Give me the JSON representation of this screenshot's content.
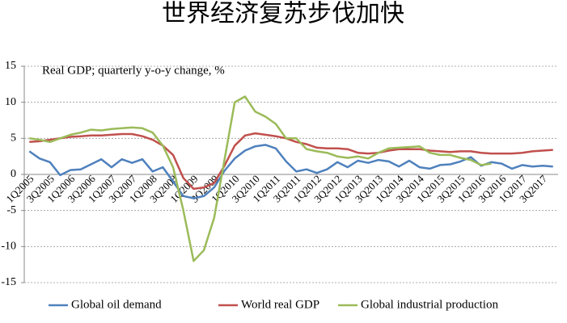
{
  "chart_data": {
    "type": "line",
    "title": "世界经济复苏步伐加快",
    "annotation": "Real GDP; quarterly y-o-y change, %",
    "categories": [
      "1Q2005",
      null,
      "3Q2005",
      null,
      "1Q2006",
      null,
      "3Q2006",
      null,
      "1Q2007",
      null,
      "3Q2007",
      null,
      "1Q2008",
      null,
      "3Q2008",
      null,
      "1Q2009",
      null,
      "3Q2009",
      null,
      "1Q2010",
      null,
      "3Q2010",
      null,
      "1Q2011",
      null,
      "3Q2011",
      null,
      "1Q2012",
      null,
      "3Q2012",
      null,
      "1Q2013",
      null,
      "3Q2013",
      null,
      "1Q2014",
      null,
      "3Q2014",
      null,
      "1Q2015",
      null,
      "3Q2015",
      null,
      "1Q2016",
      null,
      "3Q2016",
      null,
      "1Q2017",
      null,
      "3Q2017",
      null
    ],
    "series": [
      {
        "name": "Global oil demand",
        "color": "#4f81bd",
        "values": [
          3.2,
          2.2,
          1.7,
          -0.1,
          0.6,
          0.7,
          1.4,
          2.1,
          1.0,
          2.1,
          1.6,
          2.1,
          0.4,
          1.0,
          -1.0,
          -3.0,
          -3.3,
          -3.0,
          -1.8,
          0.5,
          2.2,
          3.3,
          3.9,
          4.1,
          3.6,
          1.8,
          0.4,
          0.7,
          0.2,
          0.7,
          1.7,
          1.0,
          1.9,
          1.6,
          2.0,
          1.8,
          1.1,
          1.9,
          1.0,
          0.8,
          1.3,
          1.4,
          1.8,
          2.4,
          1.2,
          1.7,
          1.5,
          0.8,
          1.3,
          1.1,
          1.2,
          1.1
        ]
      },
      {
        "name": "World real GDP",
        "color": "#c0504d",
        "values": [
          4.5,
          4.6,
          4.8,
          5.0,
          5.2,
          5.3,
          5.4,
          5.4,
          5.5,
          5.6,
          5.6,
          5.3,
          4.8,
          4.0,
          2.7,
          -0.5,
          -2.0,
          -1.8,
          -1.2,
          1.2,
          4.0,
          5.4,
          5.7,
          5.5,
          5.3,
          5.0,
          4.5,
          4.2,
          3.7,
          3.6,
          3.6,
          3.5,
          3.0,
          2.9,
          3.0,
          3.3,
          3.5,
          3.5,
          3.5,
          3.3,
          3.2,
          3.1,
          3.2,
          3.2,
          3.0,
          2.9,
          2.9,
          2.9,
          3.0,
          3.2,
          3.3,
          3.4
        ]
      },
      {
        "name": "Global industrial production",
        "color": "#9bbb59",
        "values": [
          5.0,
          4.8,
          4.5,
          5.0,
          5.5,
          5.8,
          6.2,
          6.1,
          6.3,
          6.4,
          6.5,
          6.4,
          5.8,
          4.0,
          1.0,
          -5.0,
          -12.0,
          -10.5,
          -6.0,
          2.0,
          10.0,
          10.8,
          8.7,
          8.0,
          7.0,
          5.0,
          5.0,
          3.5,
          3.2,
          3.0,
          2.5,
          2.3,
          2.5,
          2.2,
          3.0,
          3.6,
          3.7,
          3.8,
          3.9,
          3.0,
          2.7,
          2.7,
          2.3,
          2.0,
          1.3,
          1.5,
          null,
          null,
          null,
          null,
          null,
          null
        ]
      }
    ],
    "ylim": [
      -15,
      15
    ],
    "yticks": [
      -15,
      -10,
      -5,
      0,
      5,
      10,
      15
    ],
    "grid": true,
    "legend": "bottom"
  }
}
